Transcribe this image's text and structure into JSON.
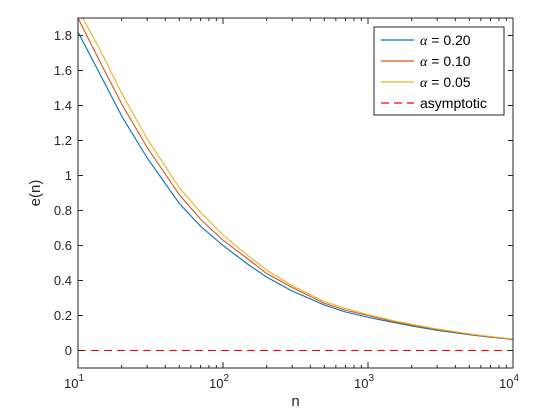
{
  "chart_data": {
    "type": "line",
    "xlabel": "n",
    "ylabel": "e(n)",
    "xscale": "log",
    "xlim": [
      10,
      10000
    ],
    "ylim": [
      -0.1,
      1.9
    ],
    "grid": false,
    "legend_position": "top-right",
    "x_ticks": [
      {
        "value": 10,
        "base": "10",
        "exp": "1"
      },
      {
        "value": 100,
        "base": "10",
        "exp": "2"
      },
      {
        "value": 1000,
        "base": "10",
        "exp": "3"
      },
      {
        "value": 10000,
        "base": "10",
        "exp": "4"
      }
    ],
    "y_ticks": [
      {
        "value": 0,
        "label": "0"
      },
      {
        "value": 0.2,
        "label": "0.2"
      },
      {
        "value": 0.4,
        "label": "0.4"
      },
      {
        "value": 0.6,
        "label": "0.6"
      },
      {
        "value": 0.8,
        "label": "0.8"
      },
      {
        "value": 1.0,
        "label": "1"
      },
      {
        "value": 1.2,
        "label": "1.2"
      },
      {
        "value": 1.4,
        "label": "1.4"
      },
      {
        "value": 1.6,
        "label": "1.6"
      },
      {
        "value": 1.8,
        "label": "1.8"
      }
    ],
    "x": [
      10,
      15,
      20,
      30,
      50,
      70,
      100,
      150,
      200,
      300,
      500,
      700,
      1000,
      1500,
      2000,
      3000,
      5000,
      7000,
      10000
    ],
    "series": [
      {
        "name": "α = 0.20",
        "color": "#0072bd",
        "style": "solid",
        "values": [
          1.82,
          1.54,
          1.34,
          1.1,
          0.84,
          0.71,
          0.6,
          0.49,
          0.42,
          0.34,
          0.26,
          0.22,
          0.19,
          0.16,
          0.14,
          0.115,
          0.09,
          0.076,
          0.063
        ]
      },
      {
        "name": "α = 0.10",
        "color": "#d95319",
        "style": "solid",
        "values": [
          1.9,
          1.61,
          1.41,
          1.16,
          0.89,
          0.75,
          0.63,
          0.52,
          0.44,
          0.36,
          0.27,
          0.23,
          0.2,
          0.165,
          0.145,
          0.12,
          0.093,
          0.078,
          0.064
        ]
      },
      {
        "name": "α = 0.05",
        "color": "#edb120",
        "style": "solid",
        "values": [
          1.95,
          1.68,
          1.47,
          1.21,
          0.93,
          0.79,
          0.66,
          0.54,
          0.46,
          0.37,
          0.28,
          0.24,
          0.205,
          0.17,
          0.15,
          0.123,
          0.095,
          0.08,
          0.066
        ]
      },
      {
        "name": "asymptotic",
        "color": "#ff0000",
        "style": "dashed",
        "values": [
          0,
          0,
          0,
          0,
          0,
          0,
          0,
          0,
          0,
          0,
          0,
          0,
          0,
          0,
          0,
          0,
          0,
          0,
          0
        ]
      }
    ],
    "legend": [
      {
        "symbol": "α",
        "text": " = 0.20",
        "color": "#0072bd",
        "style": "solid"
      },
      {
        "symbol": "α",
        "text": " = 0.10",
        "color": "#d95319",
        "style": "solid"
      },
      {
        "symbol": "α",
        "text": " = 0.05",
        "color": "#edb120",
        "style": "solid"
      },
      {
        "symbol": "",
        "text": "asymptotic",
        "color": "#ff0000",
        "style": "dashed"
      }
    ]
  }
}
